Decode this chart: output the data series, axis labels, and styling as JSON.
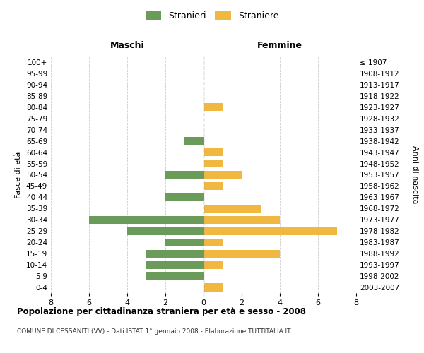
{
  "age_groups": [
    "100+",
    "95-99",
    "90-94",
    "85-89",
    "80-84",
    "75-79",
    "70-74",
    "65-69",
    "60-64",
    "55-59",
    "50-54",
    "45-49",
    "40-44",
    "35-39",
    "30-34",
    "25-29",
    "20-24",
    "15-19",
    "10-14",
    "5-9",
    "0-4"
  ],
  "birth_years": [
    "≤ 1907",
    "1908-1912",
    "1913-1917",
    "1918-1922",
    "1923-1927",
    "1928-1932",
    "1933-1937",
    "1938-1942",
    "1943-1947",
    "1948-1952",
    "1953-1957",
    "1958-1962",
    "1963-1967",
    "1968-1972",
    "1973-1977",
    "1978-1982",
    "1983-1987",
    "1988-1992",
    "1993-1997",
    "1998-2002",
    "2003-2007"
  ],
  "males": [
    0,
    0,
    0,
    0,
    0,
    0,
    0,
    1,
    0,
    0,
    2,
    0,
    2,
    0,
    6,
    4,
    2,
    3,
    3,
    3,
    0
  ],
  "females": [
    0,
    0,
    0,
    0,
    1,
    0,
    0,
    0,
    1,
    1,
    2,
    1,
    0,
    3,
    4,
    7,
    1,
    4,
    1,
    0,
    1
  ],
  "male_color": "#6a9b5a",
  "female_color": "#f0b840",
  "title_main": "Popolazione per cittadinanza straniera per età e sesso - 2008",
  "title_sub": "COMUNE DI CESSANITI (VV) - Dati ISTAT 1° gennaio 2008 - Elaborazione TUTTITALIA.IT",
  "legend_male": "Stranieri",
  "legend_female": "Straniere",
  "label_maschi": "Maschi",
  "label_femmine": "Femmine",
  "ylabel_left": "Fasce di età",
  "ylabel_right": "Anni di nascita",
  "xlim": 8,
  "bg_color": "#ffffff",
  "grid_color": "#cccccc",
  "bar_height": 0.7
}
